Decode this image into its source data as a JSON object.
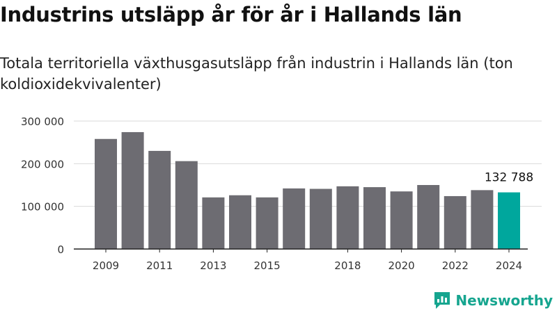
{
  "header": {
    "title": "Industrins utsläpp år för år i Hallands län",
    "subtitle": "Totala territoriella växthusgasutsläpp från industrin i Hallands län (ton koldioxidekvivalenter)"
  },
  "brand": {
    "name": "Newsworthy",
    "color": "#16a58f",
    "icon": "newsworthy-logo-icon"
  },
  "chart_data": {
    "type": "bar",
    "categories": [
      "2009",
      "2010",
      "2011",
      "2012",
      "2013",
      "2014",
      "2015",
      "2016",
      "2017",
      "2018",
      "2019",
      "2020",
      "2021",
      "2022",
      "2023",
      "2024"
    ],
    "x_tick_labels": [
      "2009",
      "2011",
      "2013",
      "2015",
      "2018",
      "2020",
      "2022",
      "2024"
    ],
    "values": [
      258000,
      274000,
      230000,
      206000,
      121000,
      126000,
      121000,
      142000,
      141000,
      147000,
      145000,
      135000,
      150000,
      124000,
      138000,
      132788
    ],
    "highlight_index": 15,
    "highlight_label": "132 788",
    "yticks": [
      0,
      100000,
      200000,
      300000
    ],
    "ytick_labels": [
      "0",
      "100 000",
      "200 000",
      "300 000"
    ],
    "ylim": [
      0,
      300000
    ],
    "bar_color": "#6d6c72",
    "highlight_color": "#00a79d",
    "grid": true
  }
}
